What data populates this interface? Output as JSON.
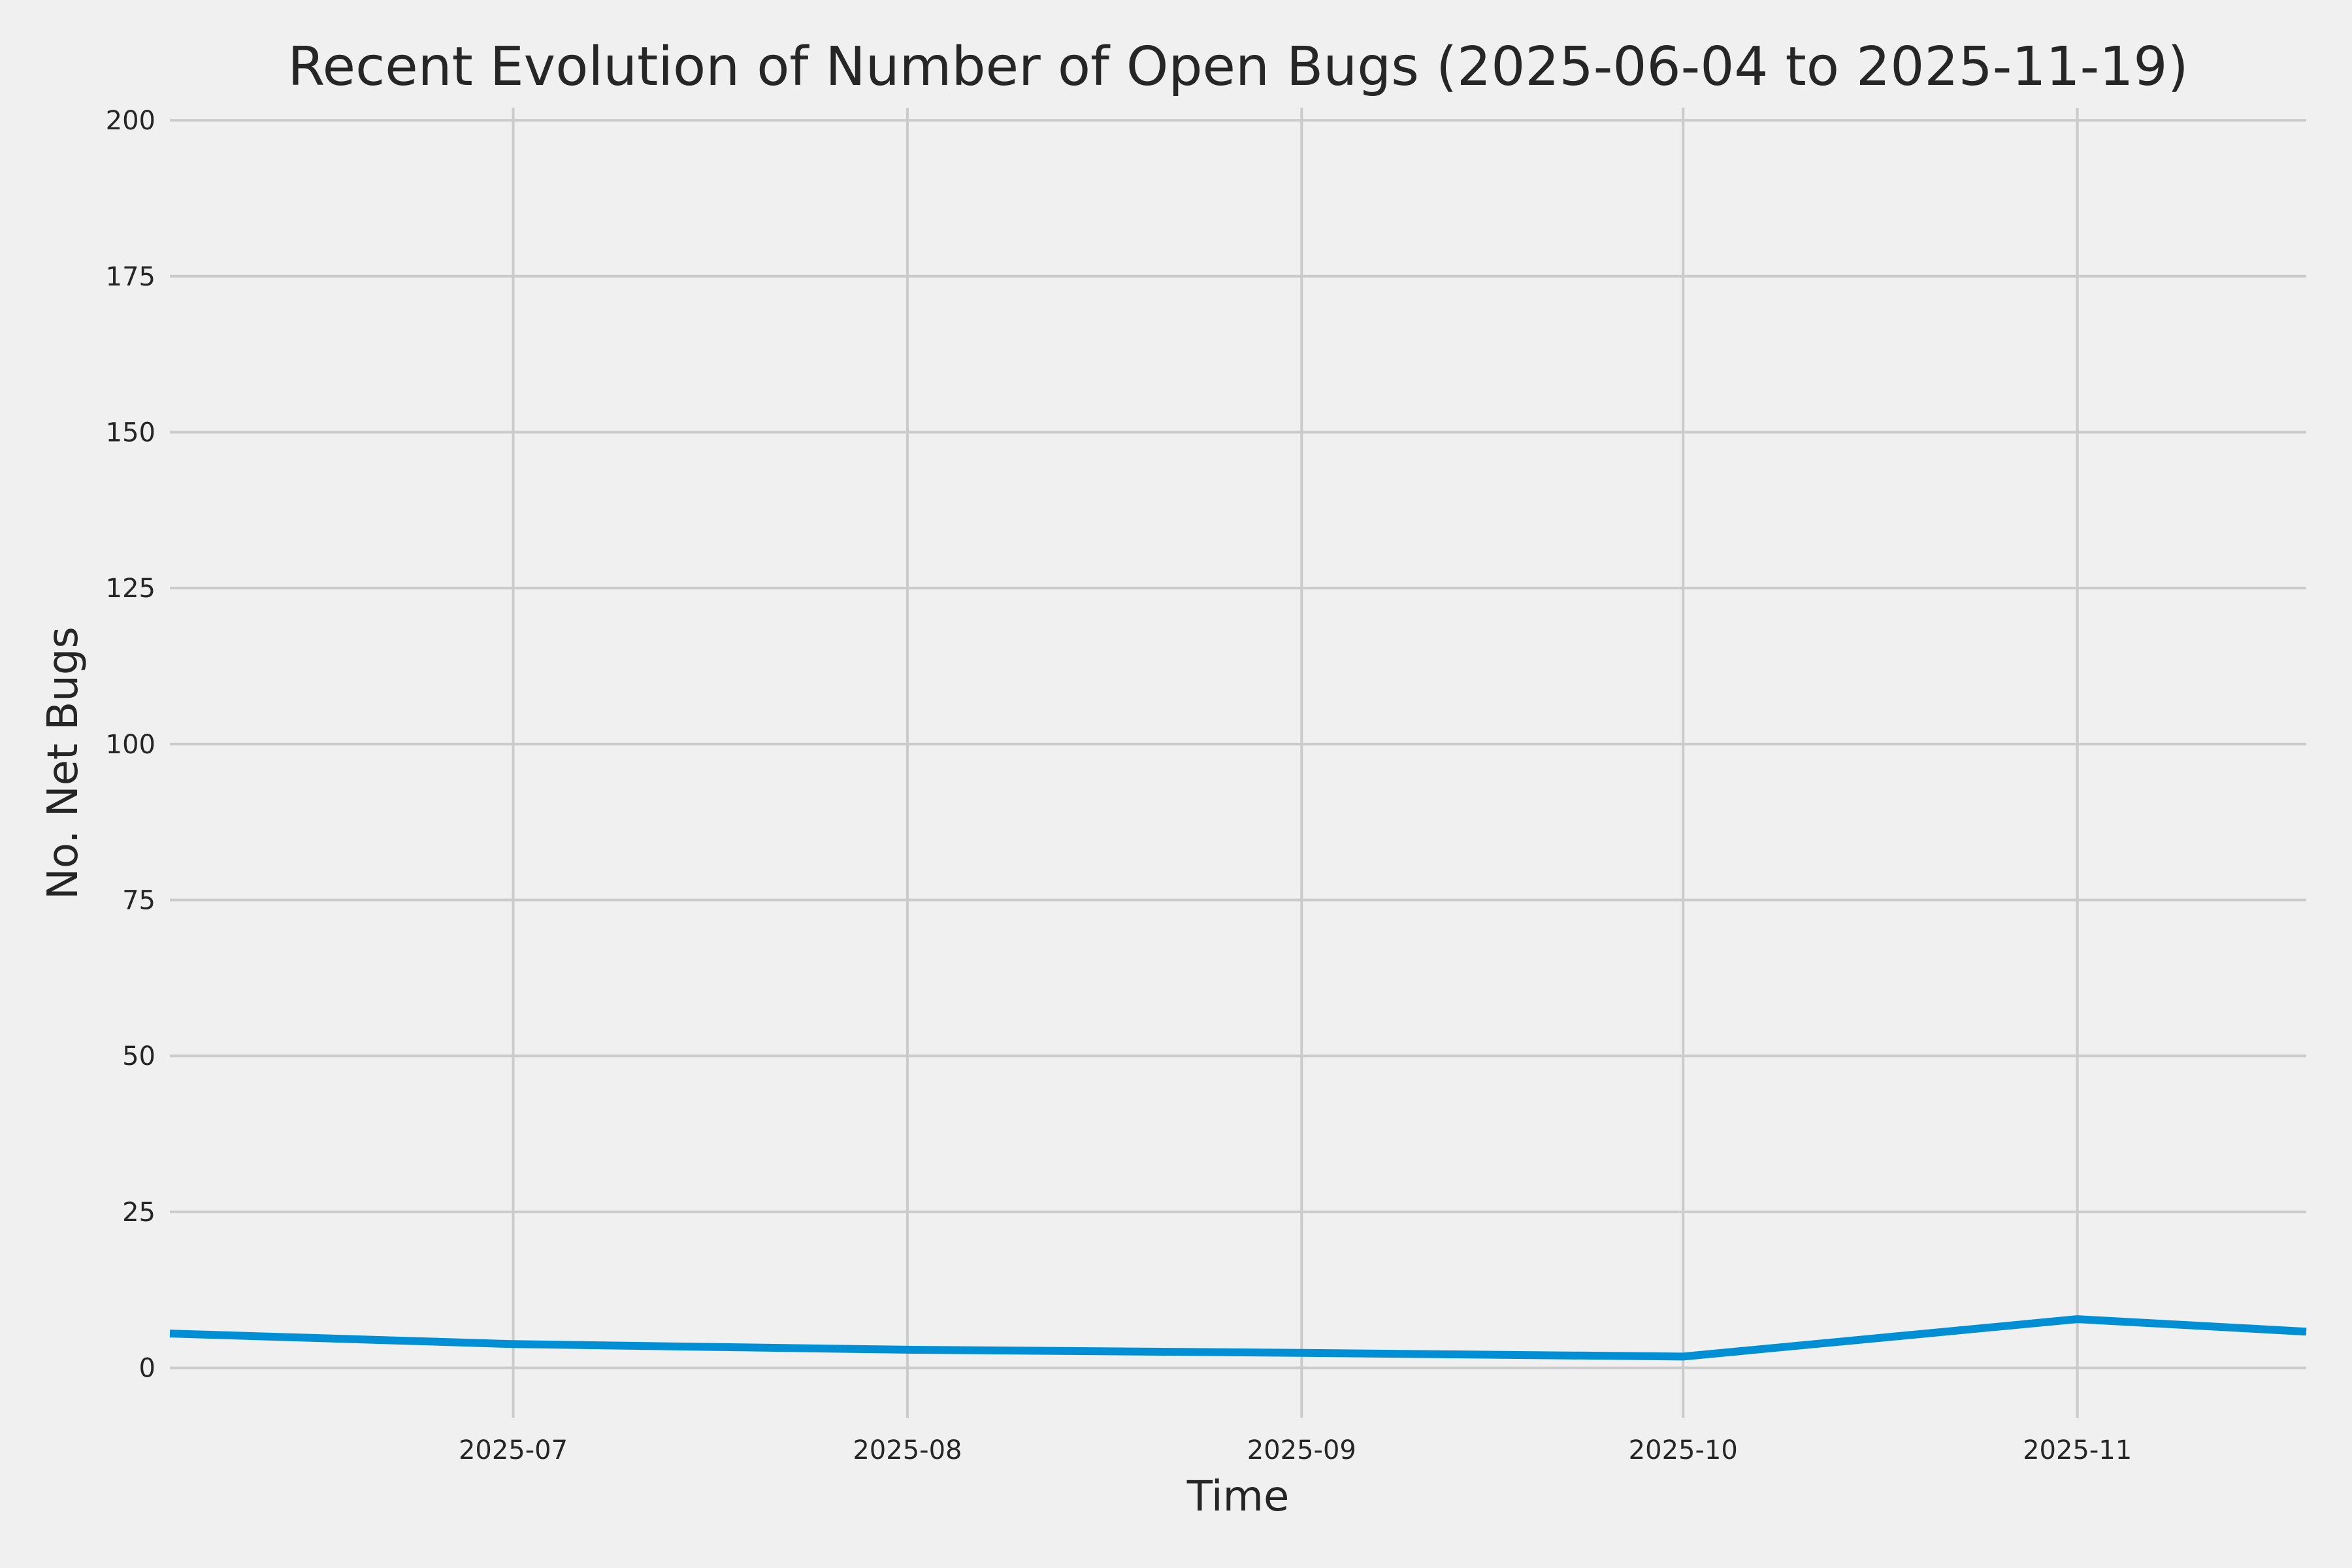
{
  "chart_data": {
    "type": "line",
    "title": "Recent Evolution of Number of Open Bugs (2025-06-04 to 2025-11-19)",
    "xlabel": "Time",
    "ylabel": "No. Net Bugs",
    "xlim": [
      "2025-06-04",
      "2025-11-19"
    ],
    "ylim": [
      -8,
      202
    ],
    "x_ticks": [
      "2025-07",
      "2025-08",
      "2025-09",
      "2025-10",
      "2025-11"
    ],
    "y_ticks": [
      0,
      25,
      50,
      75,
      100,
      125,
      150,
      175,
      200
    ],
    "grid": true,
    "legend": "none",
    "colors": {
      "background": "#f0f0f0",
      "series": "#008fd5",
      "grid": "#cbcbcb",
      "text": "#262626"
    },
    "series": [
      {
        "x": [
          "2025-06-04",
          "2025-07-01",
          "2025-08-01",
          "2025-09-01",
          "2025-10-01",
          "2025-11-01",
          "2025-11-19"
        ],
        "values": [
          5.5,
          3.8,
          2.9,
          2.4,
          1.8,
          7.8,
          5.8
        ]
      }
    ]
  }
}
